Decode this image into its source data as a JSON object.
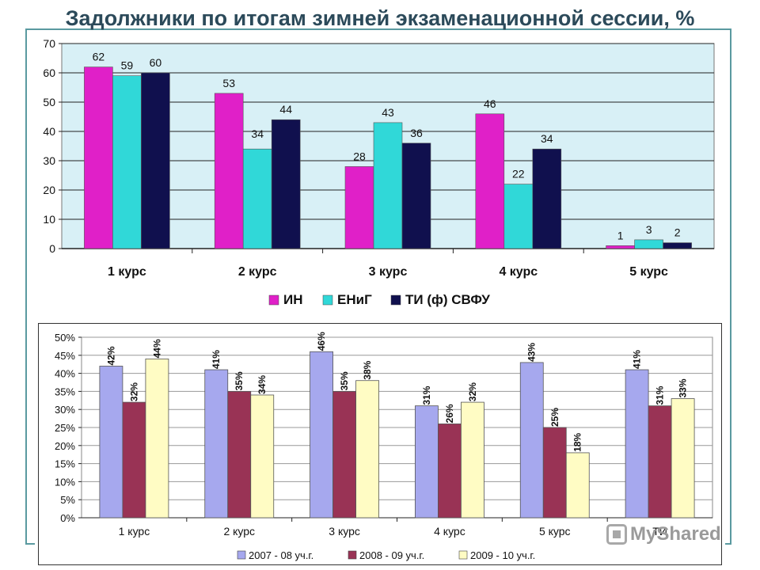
{
  "title": "Задолжники по итогам зимней экзаменационной сессии, %",
  "watermark": "MyShared",
  "colors": {
    "chart1": [
      "#e020c8",
      "#30d8d8",
      "#10104e"
    ],
    "chart2": [
      "#a6a8ee",
      "#993355",
      "#fffcc4"
    ],
    "frame": "#5a9aa0",
    "title": "#2c4a5a"
  },
  "chart_data": [
    {
      "type": "bar",
      "categories": [
        "1 курс",
        "2 курс",
        "3 курс",
        "4 курс",
        "5 курс"
      ],
      "series": [
        {
          "name": "ИН",
          "values": [
            62,
            53,
            28,
            46,
            1
          ]
        },
        {
          "name": "ЕНиГ",
          "values": [
            59,
            34,
            43,
            22,
            3
          ]
        },
        {
          "name": "ТИ (ф) СВФУ",
          "values": [
            60,
            44,
            36,
            34,
            2
          ]
        }
      ],
      "data_labels": [
        [
          "62",
          "53",
          "28",
          "46",
          "1"
        ],
        [
          "59",
          "34",
          "43",
          "22",
          "3"
        ],
        [
          "60",
          "44",
          "36",
          "34",
          "2"
        ]
      ],
      "ylim": [
        0,
        70
      ],
      "yticks": [
        "0",
        "10",
        "20",
        "30",
        "40",
        "50",
        "60",
        "70"
      ],
      "grid": true,
      "legend": "bottom"
    },
    {
      "type": "bar",
      "categories": [
        "1 курс",
        "2 курс",
        "3 курс",
        "4 курс",
        "5 курс",
        "ТИ"
      ],
      "series": [
        {
          "name": "2007 - 08 уч.г.",
          "values": [
            42,
            41,
            46,
            31,
            43,
            41
          ]
        },
        {
          "name": "2008 - 09 уч.г.",
          "values": [
            32,
            35,
            35,
            26,
            25,
            31
          ]
        },
        {
          "name": "2009 - 10 уч.г.",
          "values": [
            44,
            34,
            38,
            32,
            18,
            33
          ]
        }
      ],
      "data_labels": [
        [
          "42%",
          "41%",
          "46%",
          "31%",
          "43%",
          "41%"
        ],
        [
          "32%",
          "35%",
          "35%",
          "26%",
          "25%",
          "31%"
        ],
        [
          "44%",
          "34%",
          "38%",
          "32%",
          "18%",
          "33%"
        ]
      ],
      "ylim": [
        0,
        50
      ],
      "yticks": [
        "0%",
        "5%",
        "10%",
        "15%",
        "20%",
        "25%",
        "30%",
        "35%",
        "40%",
        "45%",
        "50%"
      ],
      "grid": true,
      "legend": "bottom"
    }
  ]
}
